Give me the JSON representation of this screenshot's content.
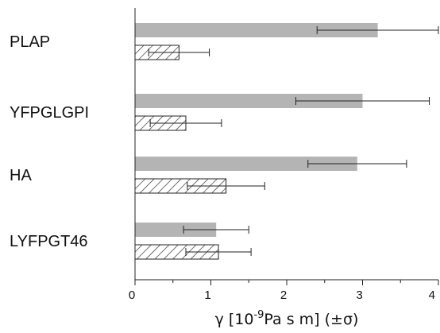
{
  "chart_data": {
    "type": "bar",
    "orientation": "horizontal",
    "categories": [
      "PLAP",
      "YFPGLGPI",
      "HA",
      "LYFPGT46"
    ],
    "series": [
      {
        "style": "solid",
        "color": "#b4b4b4",
        "values": [
          3.2,
          3.0,
          2.93,
          1.07
        ],
        "errors": [
          0.8,
          0.88,
          0.65,
          0.43
        ]
      },
      {
        "style": "hatched",
        "color": "#ffffff",
        "hatch_color": "#333333",
        "values": [
          0.58,
          0.67,
          1.2,
          1.1
        ],
        "errors": [
          0.4,
          0.47,
          0.51,
          0.43
        ]
      }
    ],
    "xlim": [
      0,
      4
    ],
    "xticks": [
      0,
      1,
      2,
      3,
      4
    ],
    "xticks_labels": [
      "0",
      "1",
      "2",
      "3",
      "4"
    ],
    "xlabel": {
      "pre": "γ [10",
      "sup": "-9",
      "post": "Pa s m] (±σ)"
    },
    "grid": false,
    "legend": "none"
  }
}
